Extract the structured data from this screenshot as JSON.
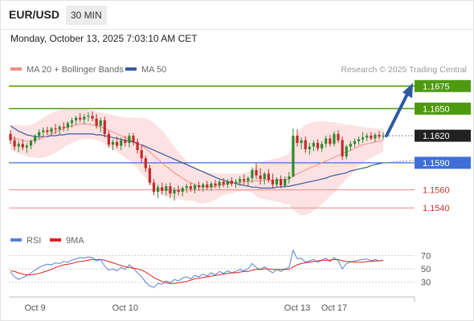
{
  "header": {
    "symbol": "EUR/USD",
    "timeframe": "30 MIN",
    "datetime": "Monday, October 13, 2025 7:03:10 AM CET"
  },
  "colors": {
    "bollinger": "#f28d8d",
    "ma50": "#3a5a9b",
    "resistance": "#4d9a0f",
    "support_blue": "#3d6fd6",
    "support_red": "#e88b8b",
    "bull": "#2d8a2d",
    "bear": "#c62828",
    "arrow": "#2f5aa0",
    "rsi": "#5b7fd6",
    "rsi_ma": "#e02020"
  },
  "chart_data": [
    {
      "type": "candlestick",
      "legend": [
        {
          "label": "MA 20 + Bollinger Bands",
          "color": "#f28d8d"
        },
        {
          "label": "MA 50",
          "color": "#3a5a9b"
        }
      ],
      "attribution": "Research © 2025 Trading Central",
      "ylim": [
        1.1525,
        1.1685
      ],
      "levels": [
        {
          "value": 1.1675,
          "label": "1.1675",
          "style": "green-tag"
        },
        {
          "value": 1.165,
          "label": "1.1650",
          "style": "green-tag"
        },
        {
          "value": 1.162,
          "label": "1.1620",
          "style": "current-price"
        },
        {
          "value": 1.159,
          "label": "1.1590",
          "style": "blue-tag"
        },
        {
          "value": 1.156,
          "label": "1.1560",
          "style": "red-text"
        },
        {
          "value": 1.154,
          "label": "1.1540",
          "style": "red-text"
        }
      ],
      "candles": [
        [
          1.1622,
          1.1626,
          1.1611,
          1.1615
        ],
        [
          1.1615,
          1.1619,
          1.1604,
          1.1608
        ],
        [
          1.1608,
          1.1614,
          1.1602,
          1.1611
        ],
        [
          1.1611,
          1.1616,
          1.1604,
          1.1607
        ],
        [
          1.1607,
          1.1612,
          1.1601,
          1.1609
        ],
        [
          1.1609,
          1.1616,
          1.1605,
          1.1614
        ],
        [
          1.1614,
          1.1622,
          1.1611,
          1.162
        ],
        [
          1.162,
          1.1627,
          1.1616,
          1.1624
        ],
        [
          1.1624,
          1.1629,
          1.1619,
          1.1626
        ],
        [
          1.1626,
          1.163,
          1.1621,
          1.1624
        ],
        [
          1.1624,
          1.163,
          1.162,
          1.1628
        ],
        [
          1.1628,
          1.1633,
          1.1622,
          1.1627
        ],
        [
          1.1627,
          1.1632,
          1.1622,
          1.163
        ],
        [
          1.163,
          1.1635,
          1.1625,
          1.1629
        ],
        [
          1.1629,
          1.1636,
          1.1625,
          1.1634
        ],
        [
          1.1634,
          1.164,
          1.1629,
          1.1637
        ],
        [
          1.1637,
          1.1642,
          1.1632,
          1.164
        ],
        [
          1.164,
          1.1645,
          1.1635,
          1.1638
        ],
        [
          1.1638,
          1.1644,
          1.1633,
          1.1641
        ],
        [
          1.1641,
          1.1646,
          1.1636,
          1.1642
        ],
        [
          1.1642,
          1.1647,
          1.1636,
          1.1639
        ],
        [
          1.1639,
          1.1644,
          1.1628,
          1.1631
        ],
        [
          1.1631,
          1.164,
          1.1624,
          1.1637
        ],
        [
          1.1637,
          1.1641,
          1.1618,
          1.1622
        ],
        [
          1.1622,
          1.1625,
          1.1607,
          1.161
        ],
        [
          1.161,
          1.1616,
          1.1604,
          1.1613
        ],
        [
          1.1613,
          1.1619,
          1.1606,
          1.1609
        ],
        [
          1.1609,
          1.1618,
          1.1604,
          1.1615
        ],
        [
          1.1615,
          1.162,
          1.1608,
          1.1612
        ],
        [
          1.1612,
          1.1623,
          1.1607,
          1.162
        ],
        [
          1.162,
          1.1623,
          1.1609,
          1.1613
        ],
        [
          1.1613,
          1.1617,
          1.16,
          1.1604
        ],
        [
          1.1604,
          1.1609,
          1.159,
          1.1595
        ],
        [
          1.1595,
          1.1598,
          1.158,
          1.1584
        ],
        [
          1.1584,
          1.1588,
          1.1565,
          1.1568
        ],
        [
          1.1568,
          1.1572,
          1.1554,
          1.1558
        ],
        [
          1.1558,
          1.1566,
          1.1551,
          1.1563
        ],
        [
          1.1563,
          1.1568,
          1.1555,
          1.1559
        ],
        [
          1.1559,
          1.1567,
          1.1554,
          1.1564
        ],
        [
          1.1564,
          1.1568,
          1.1551,
          1.1556
        ],
        [
          1.1556,
          1.1563,
          1.1548,
          1.156
        ],
        [
          1.156,
          1.1565,
          1.1554,
          1.1558
        ],
        [
          1.1558,
          1.1564,
          1.1553,
          1.1562
        ],
        [
          1.1562,
          1.1567,
          1.1557,
          1.1564
        ],
        [
          1.1564,
          1.1568,
          1.1558,
          1.1561
        ],
        [
          1.1561,
          1.1567,
          1.1556,
          1.1565
        ],
        [
          1.1565,
          1.1569,
          1.1559,
          1.1563
        ],
        [
          1.1563,
          1.1568,
          1.1558,
          1.1566
        ],
        [
          1.1566,
          1.157,
          1.156,
          1.1563
        ],
        [
          1.1563,
          1.1569,
          1.1559,
          1.1567
        ],
        [
          1.1567,
          1.1571,
          1.1562,
          1.1565
        ],
        [
          1.1565,
          1.1571,
          1.1561,
          1.1569
        ],
        [
          1.1569,
          1.1573,
          1.1563,
          1.1566
        ],
        [
          1.1566,
          1.1572,
          1.1562,
          1.157
        ],
        [
          1.157,
          1.1574,
          1.1564,
          1.1567
        ],
        [
          1.1567,
          1.1572,
          1.1562,
          1.1569
        ],
        [
          1.1569,
          1.1575,
          1.1564,
          1.1572
        ],
        [
          1.1572,
          1.1577,
          1.1566,
          1.157
        ],
        [
          1.157,
          1.1575,
          1.1564,
          1.1573
        ],
        [
          1.1573,
          1.1585,
          1.1568,
          1.1582
        ],
        [
          1.1582,
          1.159,
          1.1572,
          1.1576
        ],
        [
          1.1576,
          1.1584,
          1.1566,
          1.1572
        ],
        [
          1.1572,
          1.158,
          1.1566,
          1.1578
        ],
        [
          1.1578,
          1.1583,
          1.1568,
          1.1571
        ],
        [
          1.1571,
          1.1578,
          1.1562,
          1.1566
        ],
        [
          1.1566,
          1.1574,
          1.1563,
          1.1572
        ],
        [
          1.1572,
          1.1576,
          1.1562,
          1.1565
        ],
        [
          1.1565,
          1.1575,
          1.1562,
          1.1572
        ],
        [
          1.1572,
          1.158,
          1.1567,
          1.1575
        ],
        [
          1.1575,
          1.1628,
          1.1574,
          1.162
        ],
        [
          1.162,
          1.1627,
          1.1608,
          1.1612
        ],
        [
          1.1612,
          1.1618,
          1.1605,
          1.1615
        ],
        [
          1.1615,
          1.1619,
          1.1601,
          1.1605
        ],
        [
          1.1605,
          1.1612,
          1.1599,
          1.1608
        ],
        [
          1.1608,
          1.1615,
          1.1603,
          1.1612
        ],
        [
          1.1612,
          1.1616,
          1.1603,
          1.1606
        ],
        [
          1.1606,
          1.1614,
          1.1602,
          1.1611
        ],
        [
          1.1611,
          1.162,
          1.1607,
          1.1617
        ],
        [
          1.1617,
          1.1621,
          1.1608,
          1.1611
        ],
        [
          1.1611,
          1.1625,
          1.1608,
          1.1622
        ],
        [
          1.1622,
          1.1626,
          1.1612,
          1.1615
        ],
        [
          1.1615,
          1.1619,
          1.1593,
          1.1597
        ],
        [
          1.1597,
          1.161,
          1.1594,
          1.1608
        ],
        [
          1.1608,
          1.1614,
          1.1603,
          1.1611
        ],
        [
          1.1611,
          1.1617,
          1.1607,
          1.1614
        ],
        [
          1.1614,
          1.1619,
          1.161,
          1.1616
        ],
        [
          1.1616,
          1.1624,
          1.1612,
          1.1618
        ],
        [
          1.1618,
          1.1623,
          1.1614,
          1.162
        ],
        [
          1.162,
          1.1624,
          1.1615,
          1.1617
        ],
        [
          1.1617,
          1.1623,
          1.1613,
          1.1621
        ],
        [
          1.1621,
          1.1625,
          1.1616,
          1.1619
        ],
        [
          1.1619,
          1.1624,
          1.1616,
          1.162
        ]
      ],
      "ma20": [
        1.1618,
        1.1617,
        1.1616,
        1.1615,
        1.1614,
        1.1614,
        1.1615,
        1.1616,
        1.1618,
        1.162,
        1.1622,
        1.1624,
        1.1626,
        1.1628,
        1.163,
        1.1631,
        1.1632,
        1.1633,
        1.1633,
        1.1633,
        1.1632,
        1.1631,
        1.163,
        1.1628,
        1.1626,
        1.1624,
        1.1622,
        1.162,
        1.1618,
        1.1616,
        1.1614,
        1.1612,
        1.1609,
        1.1606,
        1.1602,
        1.1598,
        1.1594,
        1.159,
        1.1586,
        1.1583,
        1.1579,
        1.1576,
        1.1573,
        1.157,
        1.1568,
        1.1566,
        1.1564,
        1.1563,
        1.1563,
        1.1563,
        1.1564,
        1.1565,
        1.1566,
        1.1567,
        1.1567,
        1.1568,
        1.1568,
        1.1569,
        1.1569,
        1.157,
        1.157,
        1.157,
        1.1571,
        1.1571,
        1.1571,
        1.1571,
        1.1571,
        1.1571,
        1.1572,
        1.1575,
        1.1578,
        1.158,
        1.1582,
        1.1584,
        1.1586,
        1.1588,
        1.159,
        1.1592,
        1.1594,
        1.1596,
        1.1598,
        1.16,
        1.1602,
        1.1604,
        1.1606,
        1.1608,
        1.161,
        1.1611,
        1.1612,
        1.1613,
        1.1614,
        1.1615
      ],
      "bollinger_upper": [
        1.1632,
        1.1632,
        1.1632,
        1.1631,
        1.1631,
        1.1632,
        1.1634,
        1.1637,
        1.164,
        1.1643,
        1.1645,
        1.1647,
        1.1648,
        1.1649,
        1.165,
        1.165,
        1.165,
        1.165,
        1.165,
        1.1649,
        1.1648,
        1.1647,
        1.1646,
        1.1645,
        1.1644,
        1.1643,
        1.1642,
        1.1641,
        1.164,
        1.164,
        1.164,
        1.164,
        1.164,
        1.1639,
        1.1637,
        1.1634,
        1.163,
        1.1626,
        1.162,
        1.1614,
        1.1608,
        1.1602,
        1.1597,
        1.1592,
        1.1588,
        1.1585,
        1.1583,
        1.1581,
        1.158,
        1.1579,
        1.1579,
        1.1578,
        1.1578,
        1.1578,
        1.1578,
        1.1578,
        1.1578,
        1.1579,
        1.158,
        1.1583,
        1.1587,
        1.159,
        1.1592,
        1.1593,
        1.1594,
        1.1595,
        1.1596,
        1.1598,
        1.16,
        1.1612,
        1.1622,
        1.1628,
        1.1632,
        1.1634,
        1.1635,
        1.1636,
        1.1636,
        1.1636,
        1.1635,
        1.1635,
        1.1634,
        1.1633,
        1.1632,
        1.1632,
        1.1631,
        1.163,
        1.163,
        1.1629,
        1.1629,
        1.1628,
        1.1628,
        1.1628
      ],
      "bollinger_lower": [
        1.1604,
        1.1602,
        1.16,
        1.1599,
        1.1597,
        1.1596,
        1.1596,
        1.1595,
        1.1596,
        1.1597,
        1.1599,
        1.1601,
        1.1604,
        1.1607,
        1.161,
        1.1612,
        1.1614,
        1.1616,
        1.1616,
        1.1617,
        1.1616,
        1.1615,
        1.1614,
        1.1611,
        1.1608,
        1.1605,
        1.1602,
        1.1599,
        1.1596,
        1.1592,
        1.1588,
        1.1584,
        1.1578,
        1.1573,
        1.1567,
        1.1562,
        1.1558,
        1.1554,
        1.1552,
        1.1552,
        1.155,
        1.155,
        1.1549,
        1.1548,
        1.1548,
        1.1547,
        1.1545,
        1.1545,
        1.1546,
        1.1547,
        1.1549,
        1.1552,
        1.1554,
        1.1556,
        1.1556,
        1.1558,
        1.1558,
        1.1559,
        1.1558,
        1.1557,
        1.1553,
        1.155,
        1.155,
        1.1549,
        1.1548,
        1.1547,
        1.1546,
        1.1544,
        1.1544,
        1.1538,
        1.1534,
        1.1532,
        1.1532,
        1.1534,
        1.1537,
        1.154,
        1.1544,
        1.1548,
        1.1553,
        1.1557,
        1.1562,
        1.1567,
        1.1572,
        1.1576,
        1.1581,
        1.1586,
        1.159,
        1.1593,
        1.1595,
        1.1598,
        1.16,
        1.1602
      ],
      "ma50": [
        1.1631,
        1.1628,
        1.1625,
        1.1623,
        1.1621,
        1.162,
        1.1619,
        1.1619,
        1.1619,
        1.1619,
        1.162,
        1.162,
        1.1621,
        1.1621,
        1.1622,
        1.1622,
        1.1622,
        1.1622,
        1.1622,
        1.1622,
        1.1622,
        1.1621,
        1.1621,
        1.162,
        1.1619,
        1.1618,
        1.1617,
        1.1616,
        1.1615,
        1.1614,
        1.1613,
        1.1611,
        1.161,
        1.1608,
        1.1606,
        1.1604,
        1.1602,
        1.16,
        1.1598,
        1.1596,
        1.1594,
        1.1592,
        1.159,
        1.1588,
        1.1586,
        1.1584,
        1.1582,
        1.158,
        1.1578,
        1.1576,
        1.1574,
        1.1572,
        1.1571,
        1.1569,
        1.1568,
        1.1567,
        1.1566,
        1.1565,
        1.1564,
        1.1563,
        1.1563,
        1.1562,
        1.1562,
        1.1562,
        1.1562,
        1.1563,
        1.1563,
        1.1564,
        1.1564,
        1.1565,
        1.1566,
        1.1567,
        1.1568,
        1.1569,
        1.157,
        1.1571,
        1.1572,
        1.1573,
        1.1575,
        1.1576,
        1.1577,
        1.1578,
        1.1579,
        1.1581,
        1.1582,
        1.1583,
        1.1584,
        1.1585,
        1.1587,
        1.1588,
        1.1589,
        1.159
      ],
      "projection": {
        "from": 1.162,
        "to": 1.1675
      }
    },
    {
      "type": "line",
      "legend": [
        {
          "label": "RSI",
          "color": "#5b7fd6"
        },
        {
          "label": "9MA",
          "color": "#e02020"
        }
      ],
      "ylim": [
        15,
        85
      ],
      "yticks": [
        70,
        50,
        30
      ],
      "rsi": [
        45,
        38,
        34,
        37,
        40,
        44,
        48,
        52,
        55,
        57,
        56,
        59,
        58,
        61,
        60,
        63,
        65,
        67,
        66,
        68,
        67,
        62,
        64,
        54,
        48,
        50,
        47,
        52,
        49,
        56,
        51,
        44,
        38,
        30,
        24,
        22,
        28,
        27,
        32,
        29,
        34,
        32,
        36,
        38,
        35,
        40,
        38,
        42,
        39,
        44,
        41,
        46,
        43,
        47,
        44,
        46,
        49,
        47,
        50,
        58,
        52,
        49,
        53,
        48,
        44,
        49,
        46,
        50,
        52,
        78,
        65,
        66,
        60,
        62,
        64,
        60,
        63,
        66,
        61,
        67,
        62,
        50,
        58,
        60,
        62,
        63,
        64,
        65,
        62,
        64,
        62,
        63
      ],
      "rsi_ma": [
        47,
        46,
        44,
        42,
        41,
        41,
        42,
        43,
        45,
        47,
        49,
        52,
        54,
        56,
        57,
        58,
        60,
        61,
        62,
        63,
        64,
        64,
        64,
        63,
        61,
        59,
        57,
        55,
        53,
        52,
        51,
        50,
        48,
        45,
        41,
        37,
        34,
        31,
        29,
        28,
        28,
        29,
        30,
        31,
        33,
        35,
        36,
        37,
        38,
        39,
        40,
        41,
        42,
        43,
        44,
        44,
        45,
        46,
        46,
        48,
        49,
        49,
        50,
        50,
        49,
        49,
        49,
        49,
        49,
        53,
        56,
        58,
        59,
        60,
        61,
        62,
        63,
        63,
        63,
        64,
        64,
        62,
        61,
        61,
        60,
        60,
        60,
        61,
        61,
        62,
        62,
        63
      ],
      "xticks": [
        {
          "label": "Oct 9",
          "at": 6
        },
        {
          "label": "Oct 10",
          "at": 28
        },
        {
          "label": "Oct 13",
          "at": 70
        },
        {
          "label": "Oct 17",
          "at": 79
        }
      ]
    }
  ]
}
